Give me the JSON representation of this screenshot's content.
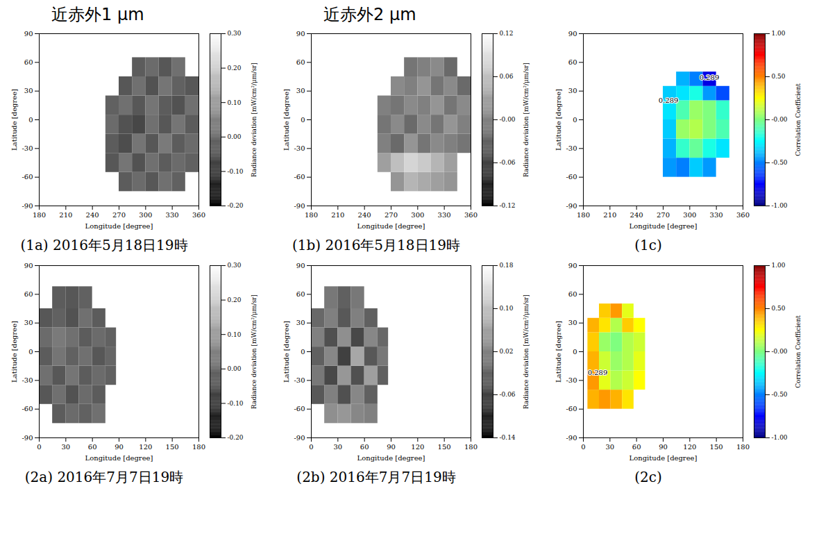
{
  "chart_data": [
    {
      "type": "heatmap",
      "subtitle": "近赤外1 μm",
      "title": "(1a) 2016年5月18日19時",
      "x_label": "Longitude [degree]",
      "y_label": "Latitude [degree]",
      "xlim": [
        180,
        360
      ],
      "xticks": [
        180,
        210,
        240,
        270,
        300,
        330,
        360
      ],
      "ylim": [
        -90,
        90
      ],
      "yticks": [
        -90,
        -60,
        -30,
        0,
        30,
        60,
        90
      ],
      "cells": {
        "lon_edges": [
          255,
          270,
          285,
          300,
          315,
          330,
          345,
          360
        ],
        "lat_edges": [
          -75,
          -55,
          -35,
          -15,
          5,
          25,
          45,
          65
        ],
        "values": [
          [
            null,
            -0.02,
            0.01,
            -0.03,
            0.02,
            -0.01,
            null
          ],
          [
            -0.03,
            0.03,
            -0.04,
            0.02,
            -0.02,
            0.01,
            -0.01
          ],
          [
            -0.02,
            -0.05,
            0.03,
            -0.03,
            0.04,
            -0.02,
            0.01
          ],
          [
            0.01,
            -0.04,
            -0.06,
            0.02,
            -0.03,
            0.03,
            -0.02
          ],
          [
            -0.01,
            0.02,
            -0.03,
            0.03,
            -0.02,
            -0.04,
            0.02
          ],
          [
            null,
            -0.03,
            0.02,
            -0.04,
            0.03,
            -0.01,
            -0.03
          ],
          [
            null,
            null,
            -0.02,
            0.01,
            -0.03,
            0.02,
            null
          ]
        ]
      },
      "colorbar": {
        "label": "Radiance deviation [mW/cm²/μm/sr]",
        "range": [
          -0.2,
          0.3
        ],
        "ticks": [
          {
            "value": 0.3,
            "label": "0.30"
          },
          {
            "value": 0.2,
            "label": "0.20"
          },
          {
            "value": 0.1,
            "label": "0.10"
          },
          {
            "value": 0,
            "label": "0.00"
          },
          {
            "value": -0.1,
            "label": "-0.10"
          },
          {
            "value": -0.2,
            "label": "-0.20"
          }
        ],
        "colors": [
          "#000000",
          "#ffffff"
        ]
      },
      "annotations": []
    },
    {
      "type": "heatmap",
      "subtitle": "近赤外2 μm",
      "title": "(1b) 2016年5月18日19時",
      "x_label": "Longitude [degree]",
      "y_label": "Latitude [degree]",
      "xlim": [
        180,
        360
      ],
      "xticks": [
        180,
        210,
        240,
        270,
        300,
        330,
        360
      ],
      "ylim": [
        -90,
        90
      ],
      "yticks": [
        -90,
        -60,
        -30,
        0,
        30,
        60,
        90
      ],
      "cells": {
        "lon_edges": [
          255,
          270,
          285,
          300,
          315,
          330,
          345,
          360
        ],
        "lat_edges": [
          -75,
          -55,
          -35,
          -15,
          5,
          25,
          45,
          65
        ],
        "values": [
          [
            null,
            0.02,
            0.05,
            0.04,
            0.03,
            0.02,
            null
          ],
          [
            0.03,
            0.06,
            0.08,
            0.07,
            0.05,
            0.03,
            null
          ],
          [
            0.0,
            -0.02,
            0.02,
            -0.01,
            0.01,
            0.0,
            -0.01
          ],
          [
            -0.01,
            0.01,
            -0.02,
            0.01,
            -0.01,
            0.02,
            0.0
          ],
          [
            0.0,
            -0.01,
            0.01,
            0.0,
            0.02,
            -0.01,
            0.01
          ],
          [
            null,
            0.01,
            0.0,
            0.02,
            -0.01,
            0.01,
            -0.02
          ],
          [
            null,
            null,
            -0.01,
            0.0,
            0.01,
            -0.02,
            null
          ]
        ]
      },
      "colorbar": {
        "label": "Radiance deviation [mW/cm²/μm/sr]",
        "range": [
          -0.12,
          0.12
        ],
        "ticks": [
          {
            "value": 0.12,
            "label": "0.12"
          },
          {
            "value": 0.06,
            "label": "0.06"
          },
          {
            "value": 0,
            "label": "-0.00"
          },
          {
            "value": -0.06,
            "label": "-0.06"
          },
          {
            "value": -0.12,
            "label": "-0.12"
          }
        ],
        "colors": [
          "#000000",
          "#ffffff"
        ]
      },
      "annotations": []
    },
    {
      "type": "heatmap",
      "title": "(1c)",
      "x_label": "Longitude [degree]",
      "y_label": "Latitude [degree]",
      "xlim": [
        180,
        360
      ],
      "xticks": [
        180,
        210,
        240,
        270,
        300,
        330,
        360
      ],
      "ylim": [
        -90,
        90
      ],
      "yticks": [
        -90,
        -60,
        -30,
        0,
        30,
        60,
        90
      ],
      "cells": {
        "lon_edges": [
          270,
          285,
          300,
          315,
          330,
          345
        ],
        "lat_edges": [
          -60,
          -40,
          -20,
          0,
          20,
          35,
          50
        ],
        "values": [
          [
            -0.45,
            -0.5,
            -0.35,
            -0.45,
            null
          ],
          [
            -0.4,
            -0.15,
            -0.05,
            -0.2,
            -0.3
          ],
          [
            -0.35,
            0.05,
            0.1,
            0.0,
            -0.1
          ],
          [
            -0.3,
            -0.1,
            0.05,
            0.0,
            -0.15
          ],
          [
            -0.35,
            -0.3,
            -0.2,
            -0.45,
            -0.6
          ],
          [
            null,
            -0.4,
            -0.5,
            -0.8,
            null
          ]
        ]
      },
      "colorbar": {
        "label": "Correlation Coefficient",
        "range": [
          -1,
          1
        ],
        "ticks": [
          {
            "value": 1,
            "label": "1.00"
          },
          {
            "value": 0.5,
            "label": "0.50"
          },
          {
            "value": 0,
            "label": "-0.00"
          },
          {
            "value": -0.5,
            "label": "-0.50"
          },
          {
            "value": -1,
            "label": "-1.00"
          }
        ],
        "colors": [
          "#00007f",
          "#0000ff",
          "#007fff",
          "#00ffff",
          "#7fff7f",
          "#ffff00",
          "#ff7f00",
          "#ff0000",
          "#7f0000"
        ]
      },
      "annotations": [
        {
          "text": "0.289",
          "lon": 322,
          "lat": 44
        },
        {
          "text": "0.289",
          "lon": 276,
          "lat": 20
        }
      ]
    },
    {
      "type": "heatmap",
      "title": "(2a) 2016年7月7日19時",
      "x_label": "Longitude [degree]",
      "y_label": "Latitude [degree]",
      "xlim": [
        0,
        180
      ],
      "xticks": [
        0,
        30,
        60,
        90,
        120,
        150,
        180
      ],
      "ylim": [
        -90,
        90
      ],
      "yticks": [
        -90,
        -60,
        -30,
        0,
        30,
        60,
        90
      ],
      "cells": {
        "lon_edges": [
          0,
          15,
          30,
          45,
          60,
          75,
          87
        ],
        "lat_edges": [
          -75,
          -55,
          -35,
          -15,
          5,
          25,
          45,
          68
        ],
        "values": [
          [
            null,
            -0.02,
            0.01,
            -0.01,
            0.02,
            null
          ],
          [
            -0.03,
            0.02,
            -0.04,
            0.01,
            -0.02,
            null
          ],
          [
            0.02,
            -0.03,
            0.03,
            -0.02,
            0.01,
            -0.01
          ],
          [
            -0.02,
            0.03,
            -0.01,
            0.02,
            -0.03,
            0.0
          ],
          [
            0.01,
            0.04,
            0.02,
            -0.02,
            0.01,
            -0.01
          ],
          [
            -0.03,
            -0.01,
            -0.04,
            0.02,
            -0.02,
            null
          ],
          [
            null,
            -0.02,
            -0.03,
            -0.01,
            null,
            null
          ]
        ]
      },
      "colorbar": {
        "label": "Radiance deviation [mW/cm²/μm/sr]",
        "range": [
          -0.2,
          0.3
        ],
        "ticks": [
          {
            "value": 0.3,
            "label": "0.30"
          },
          {
            "value": 0.2,
            "label": "0.20"
          },
          {
            "value": 0.1,
            "label": "0.10"
          },
          {
            "value": 0,
            "label": "0.00"
          },
          {
            "value": -0.1,
            "label": "-0.10"
          },
          {
            "value": -0.2,
            "label": "-0.20"
          }
        ],
        "colors": [
          "#000000",
          "#ffffff"
        ]
      },
      "annotations": []
    },
    {
      "type": "heatmap",
      "title": "(2b) 2016年7月7日19時",
      "x_label": "Longitude [degree]",
      "y_label": "Latitude [degree]",
      "xlim": [
        0,
        180
      ],
      "xticks": [
        0,
        30,
        60,
        90,
        120,
        150,
        180
      ],
      "ylim": [
        -90,
        90
      ],
      "yticks": [
        -90,
        -60,
        -30,
        0,
        30,
        60,
        90
      ],
      "cells": {
        "lon_edges": [
          0,
          15,
          30,
          45,
          60,
          75,
          87
        ],
        "lat_edges": [
          -75,
          -55,
          -35,
          -15,
          5,
          25,
          45,
          68
        ],
        "values": [
          [
            null,
            0.04,
            0.05,
            0.03,
            0.02,
            null
          ],
          [
            -0.03,
            0.02,
            -0.04,
            0.03,
            -0.02,
            null
          ],
          [
            0.01,
            -0.05,
            0.05,
            -0.04,
            0.06,
            -0.02
          ],
          [
            -0.02,
            0.03,
            -0.06,
            0.07,
            -0.03,
            0.01
          ],
          [
            0.02,
            -0.04,
            0.04,
            -0.05,
            0.03,
            -0.01
          ],
          [
            -0.01,
            0.02,
            -0.03,
            0.02,
            -0.02,
            null
          ],
          [
            null,
            0.01,
            -0.02,
            0.01,
            null,
            null
          ]
        ]
      },
      "colorbar": {
        "label": "Radiance deviation [mW/cm²/μm/sr]",
        "range": [
          -0.14,
          0.18
        ],
        "ticks": [
          {
            "value": 0.18,
            "label": "0.18"
          },
          {
            "value": 0.1,
            "label": "0.10"
          },
          {
            "value": 0.02,
            "label": "0.02"
          },
          {
            "value": -0.06,
            "label": "-0.06"
          },
          {
            "value": -0.14,
            "label": "-0.14"
          }
        ],
        "colors": [
          "#000000",
          "#ffffff"
        ]
      },
      "annotations": []
    },
    {
      "type": "heatmap",
      "title": "(2c)",
      "x_label": "Longitude [degree]",
      "y_label": "Latitude [degree]",
      "xlim": [
        0,
        180
      ],
      "xticks": [
        0,
        30,
        60,
        90,
        120,
        150,
        180
      ],
      "ylim": [
        -90,
        90
      ],
      "yticks": [
        -90,
        -60,
        -30,
        0,
        30,
        60,
        90
      ],
      "cells": {
        "lon_edges": [
          5,
          18,
          31,
          44,
          57,
          70
        ],
        "lat_edges": [
          -60,
          -40,
          -20,
          0,
          20,
          35,
          50
        ],
        "values": [
          [
            0.4,
            0.45,
            0.4,
            0.3,
            null
          ],
          [
            0.45,
            0.2,
            0.1,
            0.15,
            0.25
          ],
          [
            0.4,
            0.15,
            0.05,
            0.1,
            0.2
          ],
          [
            0.35,
            0.05,
            0.0,
            0.1,
            0.15
          ],
          [
            0.4,
            0.3,
            0.1,
            0.35,
            0.25
          ],
          [
            null,
            0.35,
            0.45,
            0.2,
            null
          ]
        ]
      },
      "colorbar": {
        "label": "Correlation Coefficient",
        "range": [
          -1,
          1
        ],
        "ticks": [
          {
            "value": 1,
            "label": "1.00"
          },
          {
            "value": 0.5,
            "label": "0.50"
          },
          {
            "value": 0,
            "label": "-0.00"
          },
          {
            "value": -0.5,
            "label": "-0.50"
          },
          {
            "value": -1,
            "label": "-1.00"
          }
        ],
        "colors": [
          "#00007f",
          "#0000ff",
          "#007fff",
          "#00ffff",
          "#7fff7f",
          "#ffff00",
          "#ff7f00",
          "#ff0000",
          "#7f0000"
        ]
      },
      "annotations": [
        {
          "text": "0.289",
          "lon": 16,
          "lat": -22
        }
      ]
    }
  ]
}
